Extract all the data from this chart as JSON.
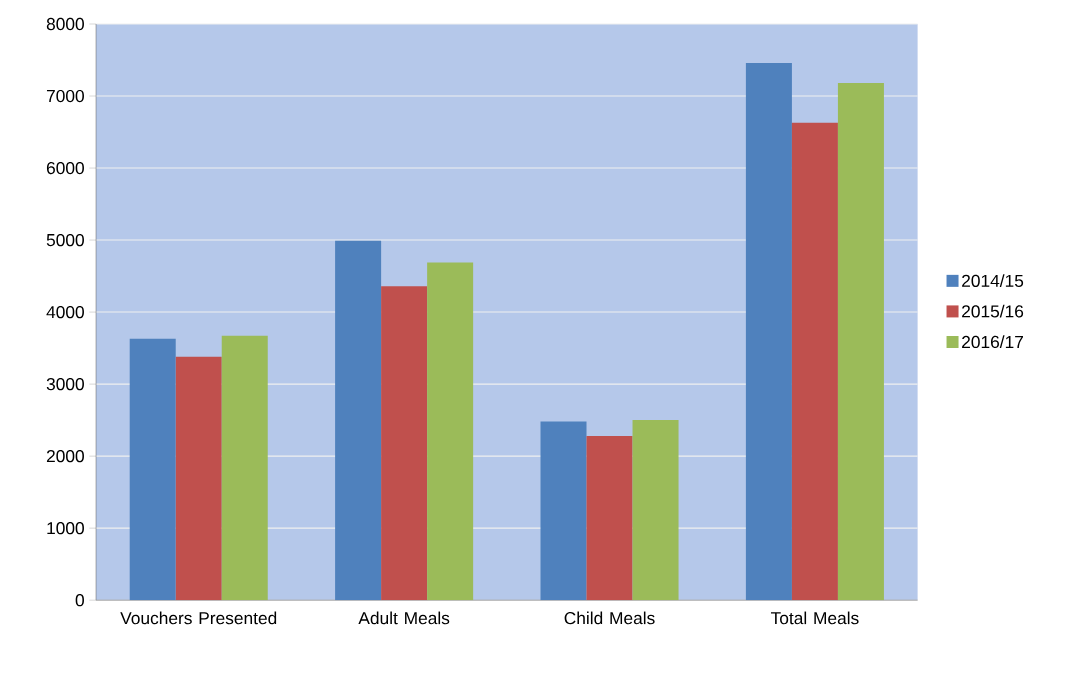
{
  "chart_data": {
    "type": "bar",
    "categories": [
      "Vouchers Presented",
      "Adult Meals",
      "Child Meals",
      "Total Meals"
    ],
    "series": [
      {
        "name": "2014/15",
        "color": "#4f81bd",
        "values": [
          3630,
          4990,
          2480,
          7460
        ]
      },
      {
        "name": "2015/16",
        "color": "#c0504d",
        "values": [
          3380,
          4360,
          2280,
          6630
        ]
      },
      {
        "name": "2016/17",
        "color": "#9bbb59",
        "values": [
          3670,
          4690,
          2500,
          7180
        ]
      }
    ],
    "ylim": [
      0,
      8000
    ],
    "yticks": [
      0,
      1000,
      2000,
      3000,
      4000,
      5000,
      6000,
      7000,
      8000
    ],
    "grid": "y",
    "legend": "right"
  }
}
